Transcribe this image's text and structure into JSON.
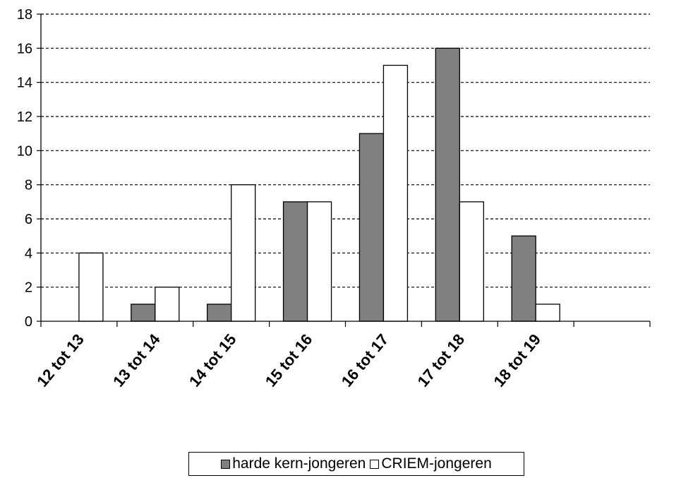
{
  "chart_data": {
    "type": "bar",
    "title": "",
    "xlabel": "",
    "ylabel": "",
    "categories": [
      "12 tot 13",
      "13 tot 14",
      "14 tot 15",
      "15 tot 16",
      "16 tot 17",
      "17 tot 18",
      "18 tot 19"
    ],
    "series": [
      {
        "name": "harde kern-jongeren",
        "color": "#808080",
        "values": [
          0,
          1,
          1,
          7,
          11,
          16,
          5
        ]
      },
      {
        "name": "CRIEM-jongeren",
        "color": "#ffffff",
        "values": [
          4,
          2,
          8,
          7,
          15,
          7,
          1
        ]
      }
    ],
    "ylim": [
      0,
      18
    ],
    "yticks": [
      "0",
      "2",
      "4",
      "6",
      "8",
      "10",
      "12",
      "14",
      "16",
      "18"
    ],
    "grid": "horizontal dashed",
    "legend_position": "bottom"
  }
}
